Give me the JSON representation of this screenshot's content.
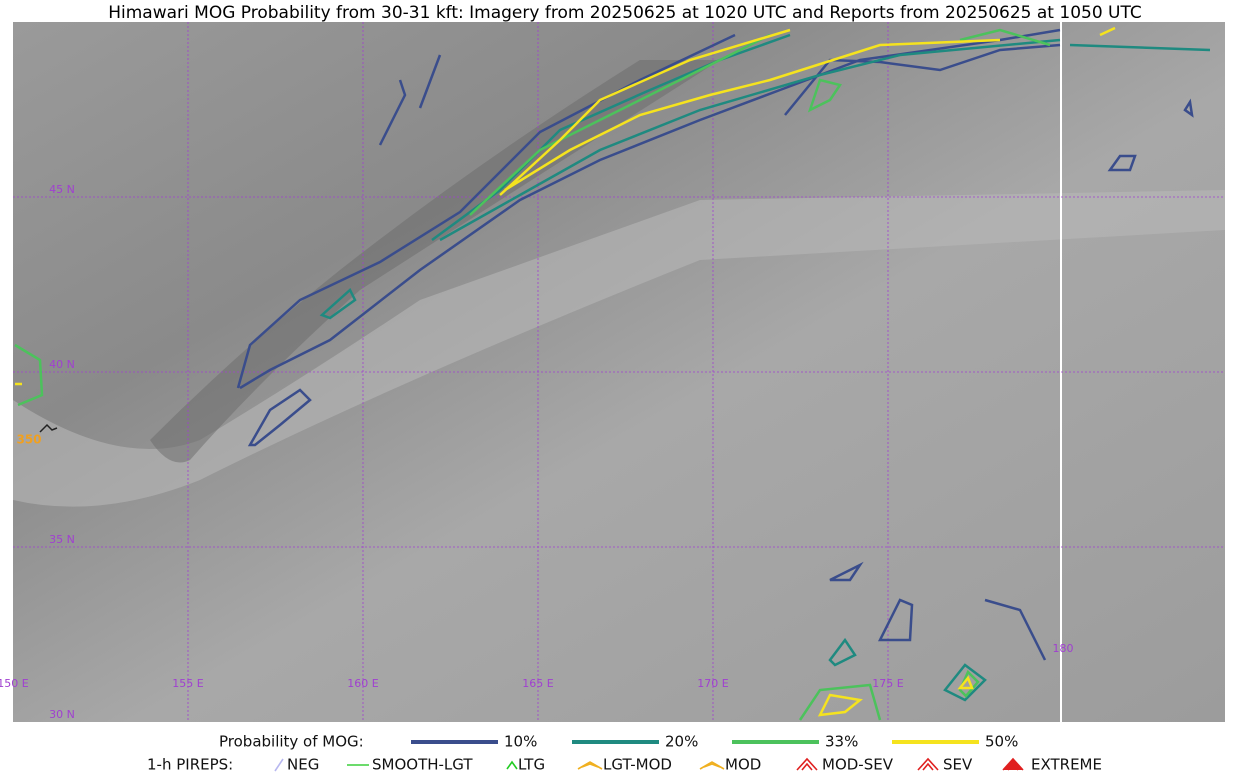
{
  "title": "Himawari MOG Probability from 30-31 kft: Imagery from 20250625 at 1020 UTC and Reports from 20250625 at 1050 UTC",
  "lat_labels": [
    "45 N",
    "40 N",
    "35 N",
    "30 N"
  ],
  "lon_labels": [
    "150 E",
    "155 E",
    "160 E",
    "165 E",
    "170 E",
    "175 E",
    "180"
  ],
  "report_label": "350",
  "legend": {
    "probability_title": "Probability of MOG:",
    "probability_levels": [
      {
        "label": "10%",
        "color": "#3a4d8c"
      },
      {
        "label": "20%",
        "color": "#1f8a80"
      },
      {
        "label": "33%",
        "color": "#4cc25c"
      },
      {
        "label": "50%",
        "color": "#f5e31e"
      }
    ],
    "pireps_title": "1-h PIREPS:",
    "pireps": [
      {
        "label": "NEG",
        "color": "#b8b8f0"
      },
      {
        "label": "SMOOTH-LGT",
        "color": "#3ccf3c"
      },
      {
        "label": "LTG",
        "color": "#22cc22"
      },
      {
        "label": "LGT-MOD",
        "color": "#f0b020"
      },
      {
        "label": "MOD",
        "color": "#f0b020"
      },
      {
        "label": "MOD-SEV",
        "color": "#e02020"
      },
      {
        "label": "SEV",
        "color": "#e02020"
      },
      {
        "label": "EXTREME",
        "color": "#e02020"
      }
    ]
  }
}
